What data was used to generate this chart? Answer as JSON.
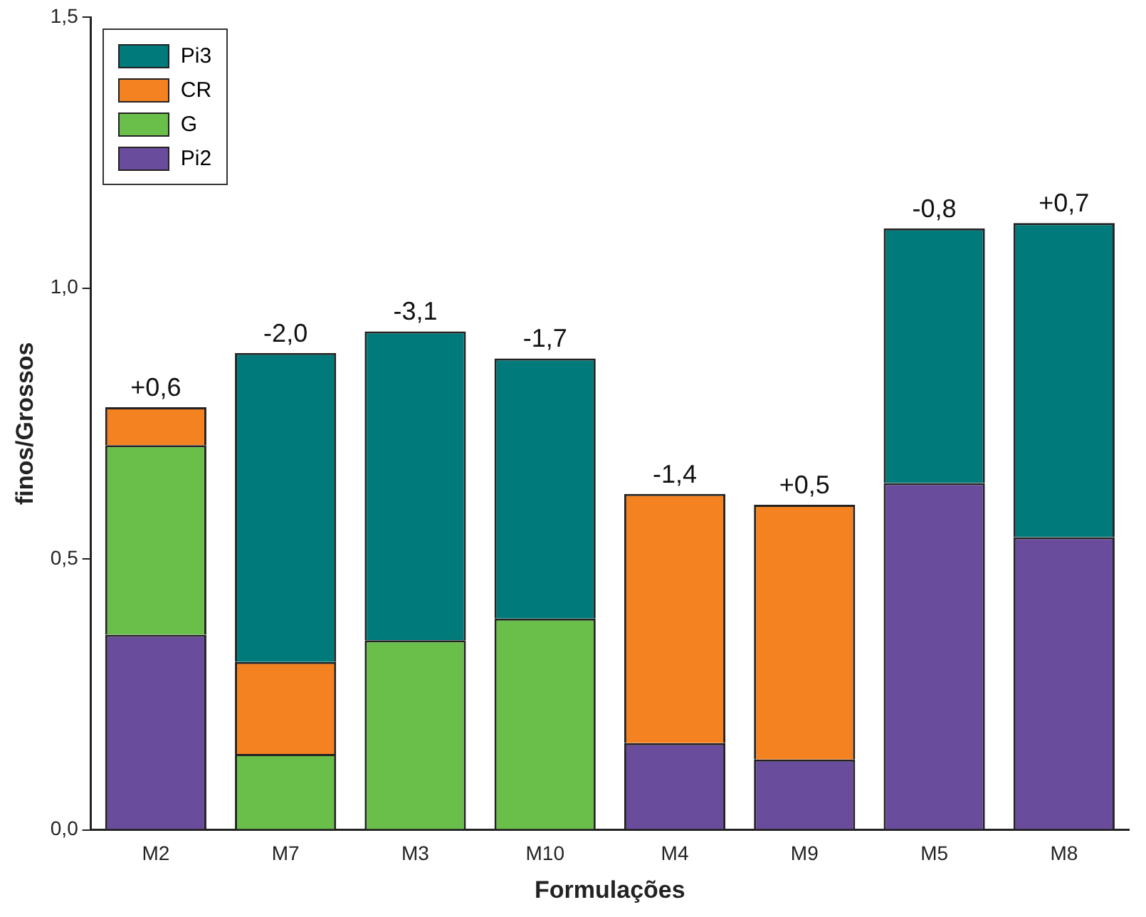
{
  "chart_data": {
    "type": "bar",
    "stacked": true,
    "xlabel": "Formulações",
    "ylabel": "finos/Grossos",
    "categories": [
      "M2",
      "M7",
      "M3",
      "M10",
      "M4",
      "M9",
      "M5",
      "M8"
    ],
    "series": [
      {
        "name": "Pi2",
        "color": "#6a4c9c",
        "values": [
          0.36,
          null,
          null,
          null,
          0.16,
          0.13,
          0.64,
          0.54
        ]
      },
      {
        "name": "G",
        "color": "#6abf4b",
        "values": [
          0.35,
          0.14,
          0.35,
          0.39,
          null,
          null,
          null,
          null
        ]
      },
      {
        "name": "CR",
        "color": "#f58220",
        "values": [
          0.07,
          0.17,
          null,
          null,
          0.46,
          0.47,
          null,
          null
        ]
      },
      {
        "name": "Pi3",
        "color": "#007a7a",
        "values": [
          null,
          0.57,
          0.57,
          0.48,
          null,
          null,
          0.47,
          0.58
        ]
      }
    ],
    "annotations": [
      {
        "text": "+0,6",
        "x": "M2",
        "y": 0.78
      },
      {
        "text": "-2,0",
        "x": "M7",
        "y": 0.88
      },
      {
        "text": "-3,1",
        "x": "M3",
        "y": 0.92
      },
      {
        "text": "-1,7",
        "x": "M10",
        "y": 0.87
      },
      {
        "text": "-1,4",
        "x": "M4",
        "y": 0.62
      },
      {
        "text": "+0,5",
        "x": "M9",
        "y": 0.6
      },
      {
        "text": "-0,8",
        "x": "M5",
        "y": 1.11
      },
      {
        "text": "+0,7",
        "x": "M8",
        "y": 1.12
      }
    ],
    "ylim": [
      0,
      1.5
    ],
    "yticks": [
      {
        "value": 0,
        "label": "0,0"
      },
      {
        "value": 0.5,
        "label": "0,5"
      },
      {
        "value": 1,
        "label": "1,0"
      },
      {
        "value": 1.5,
        "label": "1,5"
      }
    ],
    "grid": false,
    "legend": "top left"
  }
}
